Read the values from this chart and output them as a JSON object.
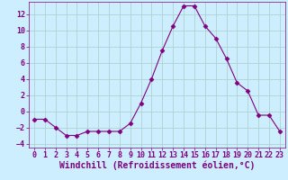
{
  "x": [
    0,
    1,
    2,
    3,
    4,
    5,
    6,
    7,
    8,
    9,
    10,
    11,
    12,
    13,
    14,
    15,
    16,
    17,
    18,
    19,
    20,
    21,
    22,
    23
  ],
  "y": [
    -1,
    -1,
    -2,
    -3,
    -3,
    -2.5,
    -2.5,
    -2.5,
    -2.5,
    -1.5,
    1,
    4,
    7.5,
    10.5,
    13,
    13,
    10.5,
    9,
    6.5,
    3.5,
    2.5,
    -0.5,
    -0.5,
    -2.5
  ],
  "line_color": "#800080",
  "marker": "D",
  "marker_size": 2.5,
  "bg_color": "#cceeff",
  "grid_color": "#aacccc",
  "xlabel": "Windchill (Refroidissement éolien,°C)",
  "ylim": [
    -4.5,
    13.5
  ],
  "xlim": [
    -0.5,
    23.5
  ],
  "yticks": [
    -4,
    -2,
    0,
    2,
    4,
    6,
    8,
    10,
    12
  ],
  "xticks": [
    0,
    1,
    2,
    3,
    4,
    5,
    6,
    7,
    8,
    9,
    10,
    11,
    12,
    13,
    14,
    15,
    16,
    17,
    18,
    19,
    20,
    21,
    22,
    23
  ],
  "font_color": "#800080",
  "tick_fontsize": 6,
  "xlabel_fontsize": 7
}
